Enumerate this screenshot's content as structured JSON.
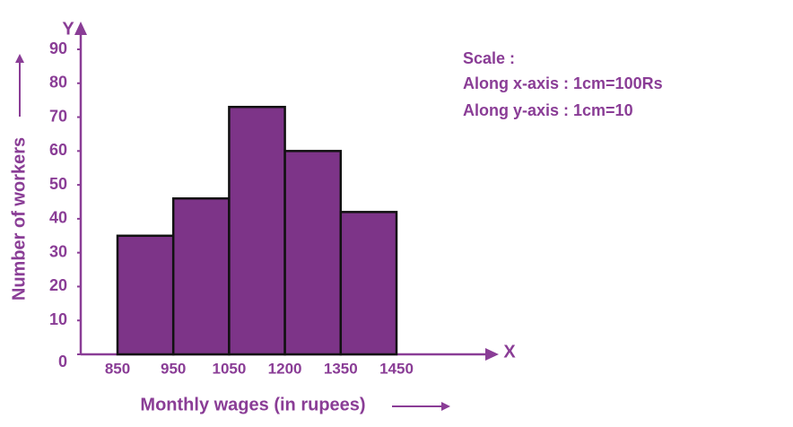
{
  "chart_data": {
    "type": "histogram",
    "x_label": "Monthly wages (in rupees)",
    "y_label": "Number of workers",
    "x_axis_letter": "X",
    "y_axis_letter": "Y",
    "bins": [
      850,
      950,
      1050,
      1200,
      1350,
      1450
    ],
    "counts": [
      35,
      46,
      73,
      60,
      42
    ],
    "color": "#7d3488",
    "ylim": [
      0,
      90
    ],
    "yticks": [
      0,
      10,
      20,
      30,
      40,
      50,
      60,
      70,
      80,
      90
    ],
    "scale_note": [
      "Scale :",
      "Along x-axis : 1cm=100Rs",
      "Along y-axis : 1cm=10"
    ]
  }
}
